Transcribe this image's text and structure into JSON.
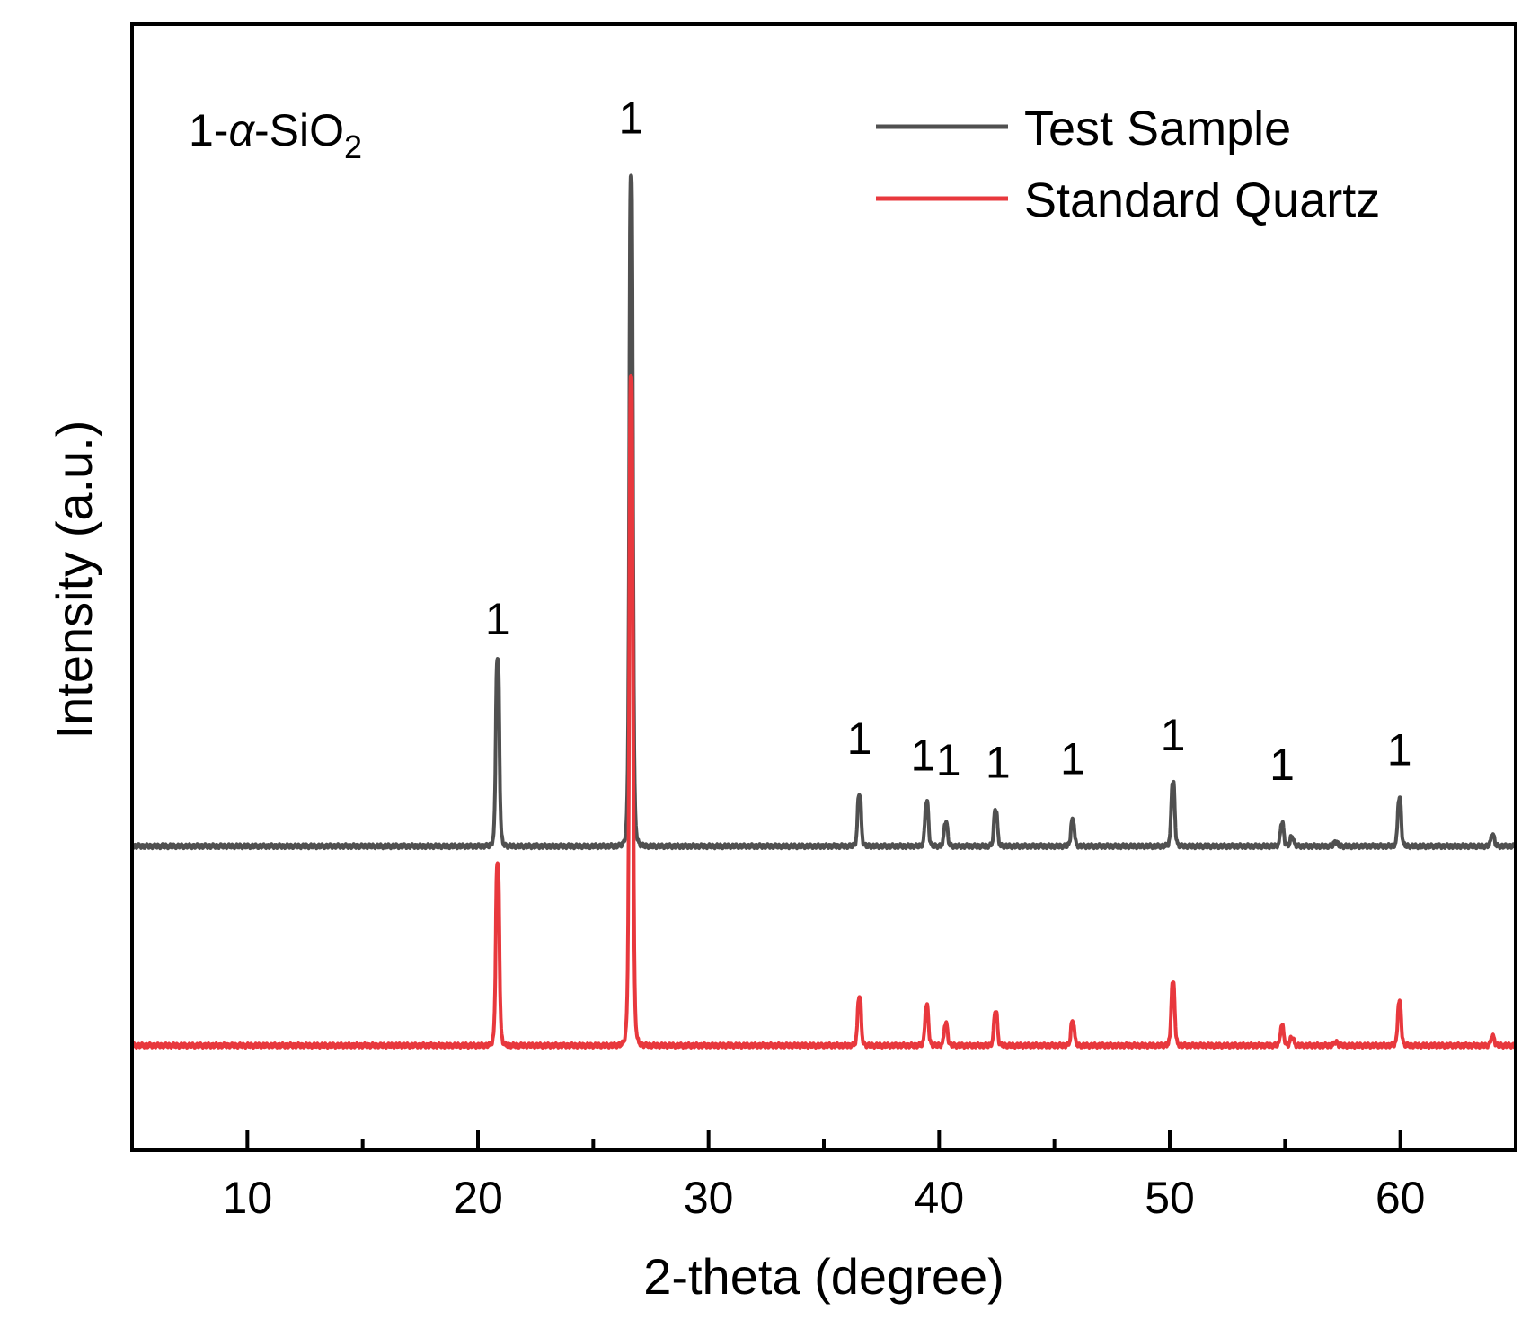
{
  "chart_data": {
    "type": "line",
    "title": "",
    "xlabel": "2-theta (degree)",
    "ylabel": "Intensity (a.u.)",
    "xlim": [
      5,
      65
    ],
    "ylim": [
      0,
      100
    ],
    "x_ticks": [
      10,
      20,
      30,
      40,
      50,
      60
    ],
    "x_tick_labels": [
      "10",
      "20",
      "30",
      "40",
      "50",
      "60"
    ],
    "x_minor_ticks": [
      15,
      25,
      35,
      45,
      55
    ],
    "y_tick_labels_shown": false,
    "grid": false,
    "legend_position": "top-right",
    "phase_label": {
      "prefix": "1-",
      "alpha": "α",
      "compound": "-SiO",
      "subscript": "2"
    },
    "series": [
      {
        "name": "Test Sample",
        "color": "#505050",
        "baseline": 27,
        "peaks": [
          {
            "x": 20.85,
            "height": 16.5
          },
          {
            "x": 26.64,
            "height": 59.5
          },
          {
            "x": 36.54,
            "height": 4.6
          },
          {
            "x": 39.46,
            "height": 3.9
          },
          {
            "x": 40.29,
            "height": 2.1
          },
          {
            "x": 42.45,
            "height": 3.2
          },
          {
            "x": 45.79,
            "height": 2.3
          },
          {
            "x": 50.14,
            "height": 5.6
          },
          {
            "x": 54.87,
            "height": 2.0
          },
          {
            "x": 55.3,
            "height": 0.8
          },
          {
            "x": 57.2,
            "height": 0.4
          },
          {
            "x": 59.96,
            "height": 4.2
          },
          {
            "x": 64.0,
            "height": 1.0
          }
        ]
      },
      {
        "name": "Standard Quartz",
        "color": "#e8383d",
        "baseline": 9.3,
        "peaks": [
          {
            "x": 20.85,
            "height": 16.0
          },
          {
            "x": 26.64,
            "height": 59.5
          },
          {
            "x": 36.54,
            "height": 4.3
          },
          {
            "x": 39.46,
            "height": 3.5
          },
          {
            "x": 40.29,
            "height": 1.9
          },
          {
            "x": 42.45,
            "height": 3.0
          },
          {
            "x": 45.79,
            "height": 2.1
          },
          {
            "x": 50.14,
            "height": 5.5
          },
          {
            "x": 54.87,
            "height": 1.7
          },
          {
            "x": 55.3,
            "height": 0.7
          },
          {
            "x": 57.2,
            "height": 0.3
          },
          {
            "x": 59.96,
            "height": 3.8
          },
          {
            "x": 64.0,
            "height": 0.8
          }
        ]
      }
    ],
    "annotations": [
      {
        "text": "1",
        "x": 20.85,
        "y": 45.8
      },
      {
        "text": "1",
        "x": 26.64,
        "y": 90.3
      },
      {
        "text": "1",
        "x": 36.54,
        "y": 35.2
      },
      {
        "text": "1",
        "x": 39.3,
        "y": 33.7
      },
      {
        "text": "1",
        "x": 40.4,
        "y": 33.3
      },
      {
        "text": "1",
        "x": 42.55,
        "y": 33.1
      },
      {
        "text": "1",
        "x": 45.79,
        "y": 33.4
      },
      {
        "text": "1",
        "x": 50.14,
        "y": 35.5
      },
      {
        "text": "1",
        "x": 54.87,
        "y": 32.9
      },
      {
        "text": "1",
        "x": 59.96,
        "y": 34.2
      }
    ]
  }
}
